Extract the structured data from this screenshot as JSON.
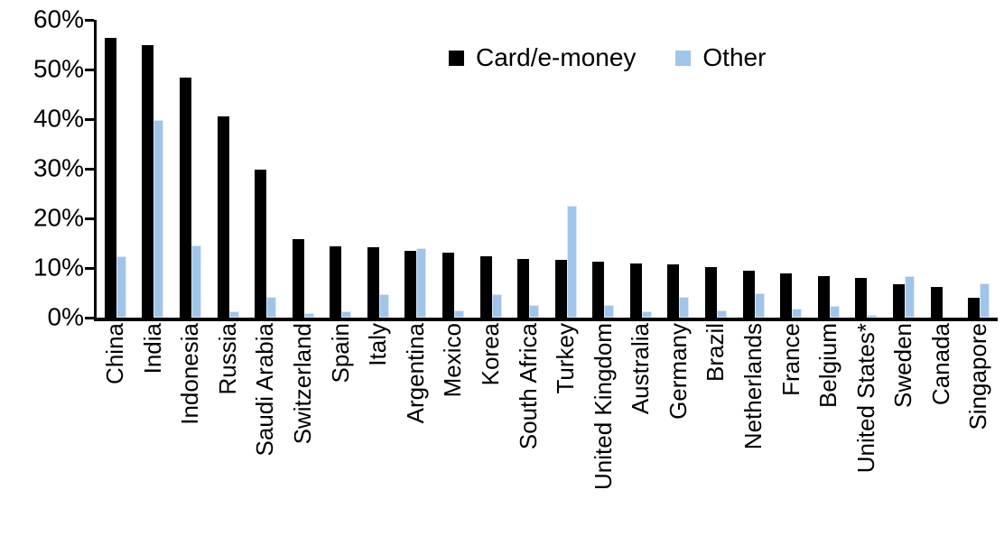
{
  "chart_data": {
    "type": "bar",
    "title": "",
    "xlabel": "",
    "ylabel": "",
    "ylim": [
      0,
      60
    ],
    "y_tick_values": [
      60,
      50,
      40,
      30,
      20,
      10,
      0
    ],
    "y_tick_labels": [
      "60%",
      "50%",
      "40%",
      "30%",
      "20%",
      "10%",
      "0%"
    ],
    "grid": false,
    "legend_position": "top-center",
    "value_unit": "percent",
    "categories": [
      "China",
      "India",
      "Indonesia",
      "Russia",
      "Saudi Arabia",
      "Switzerland",
      "Spain",
      "Italy",
      "Argentina",
      "Mexico",
      "Korea",
      "South Africa",
      "Turkey",
      "United Kingdom",
      "Australia",
      "Germany",
      "Brazil",
      "Netherlands",
      "France",
      "Belgium",
      "United States*",
      "Sweden",
      "Canada",
      "Singapore"
    ],
    "series": [
      {
        "name": "Card/e-money",
        "color": "#000000",
        "values": [
          56.3,
          55.0,
          48.4,
          40.6,
          29.9,
          15.8,
          14.3,
          14.1,
          13.5,
          13.1,
          12.4,
          11.9,
          11.7,
          11.2,
          11.0,
          10.8,
          10.2,
          9.4,
          9.0,
          8.4,
          8.0,
          6.7,
          6.1,
          4.0
        ]
      },
      {
        "name": "Other",
        "color": "#a1c5e8",
        "values": [
          12.4,
          39.8,
          14.6,
          1.2,
          4.1,
          1.0,
          1.2,
          4.7,
          14.0,
          1.5,
          4.7,
          2.5,
          22.6,
          2.6,
          1.2,
          4.2,
          1.4,
          5.0,
          1.8,
          2.3,
          0.6,
          8.3,
          0.0,
          6.9
        ]
      }
    ]
  }
}
